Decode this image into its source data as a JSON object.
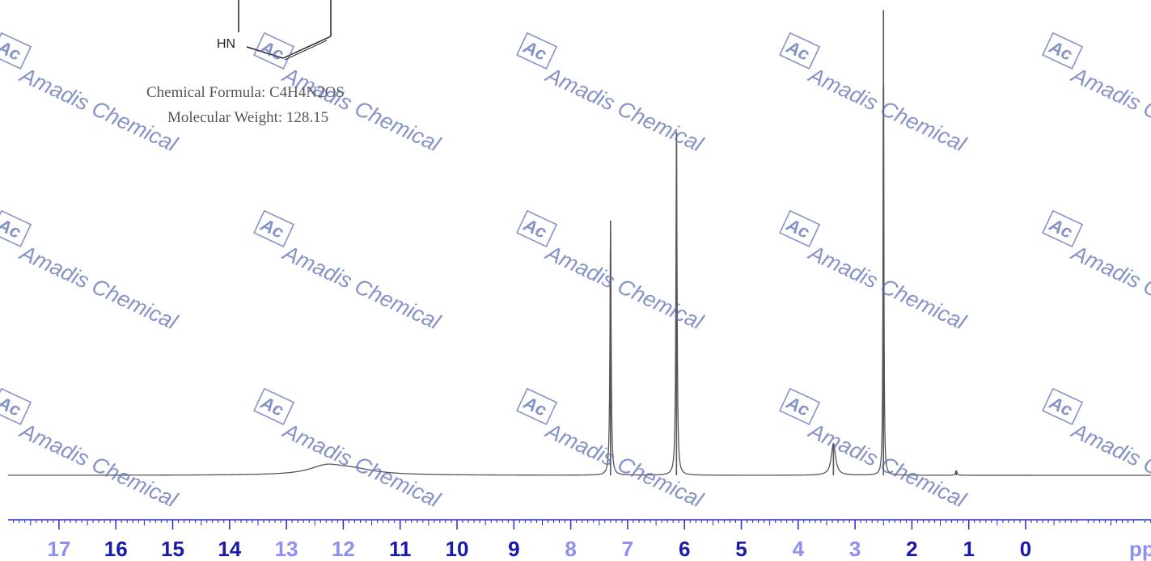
{
  "structure": {
    "atom_label": "HN"
  },
  "compound_info": {
    "formula_label": "Chemical Formula:",
    "formula": "C4H4N2OS",
    "weight_label": "Molecular Weight:",
    "weight": "128.15"
  },
  "watermark": {
    "logo": "Ac",
    "text": "Amadis Chemical"
  },
  "colors": {
    "spectrum_line": "#555555",
    "axis": "#2b2bd0",
    "tick_label_dark": "#1a1aa8",
    "tick_label_light": "#8f8ff0",
    "watermark": "#5e6fb6"
  },
  "chart_data": {
    "type": "line",
    "title": "",
    "xlabel": "ppm",
    "ylabel": "",
    "xlim": [
      18.3,
      -2.2
    ],
    "x_reversed": true,
    "ylim": [
      0,
      100
    ],
    "grid": false,
    "x_ticks": [
      17,
      16,
      15,
      14,
      13,
      12,
      11,
      10,
      9,
      8,
      7,
      6,
      5,
      4,
      3,
      2,
      1,
      0
    ],
    "light_ticks": [
      17,
      13,
      12,
      8,
      7,
      4,
      3
    ],
    "series": [
      {
        "baseline": 0,
        "peaks": [
          {
            "ppm": 12.3,
            "height": 1.7,
            "width": 0.35
          },
          {
            "ppm": 11.85,
            "height": 1.2,
            "width": 0.5
          },
          {
            "ppm": 7.3,
            "height": 54.5,
            "width": 0.012
          },
          {
            "ppm": 6.14,
            "height": 73.5,
            "width": 0.012
          },
          {
            "ppm": 3.38,
            "height": 6.8,
            "width": 0.045
          },
          {
            "ppm": 2.5,
            "height": 99.6,
            "width": 0.008
          },
          {
            "ppm": 1.22,
            "height": 1.0,
            "width": 0.015
          }
        ]
      }
    ]
  }
}
